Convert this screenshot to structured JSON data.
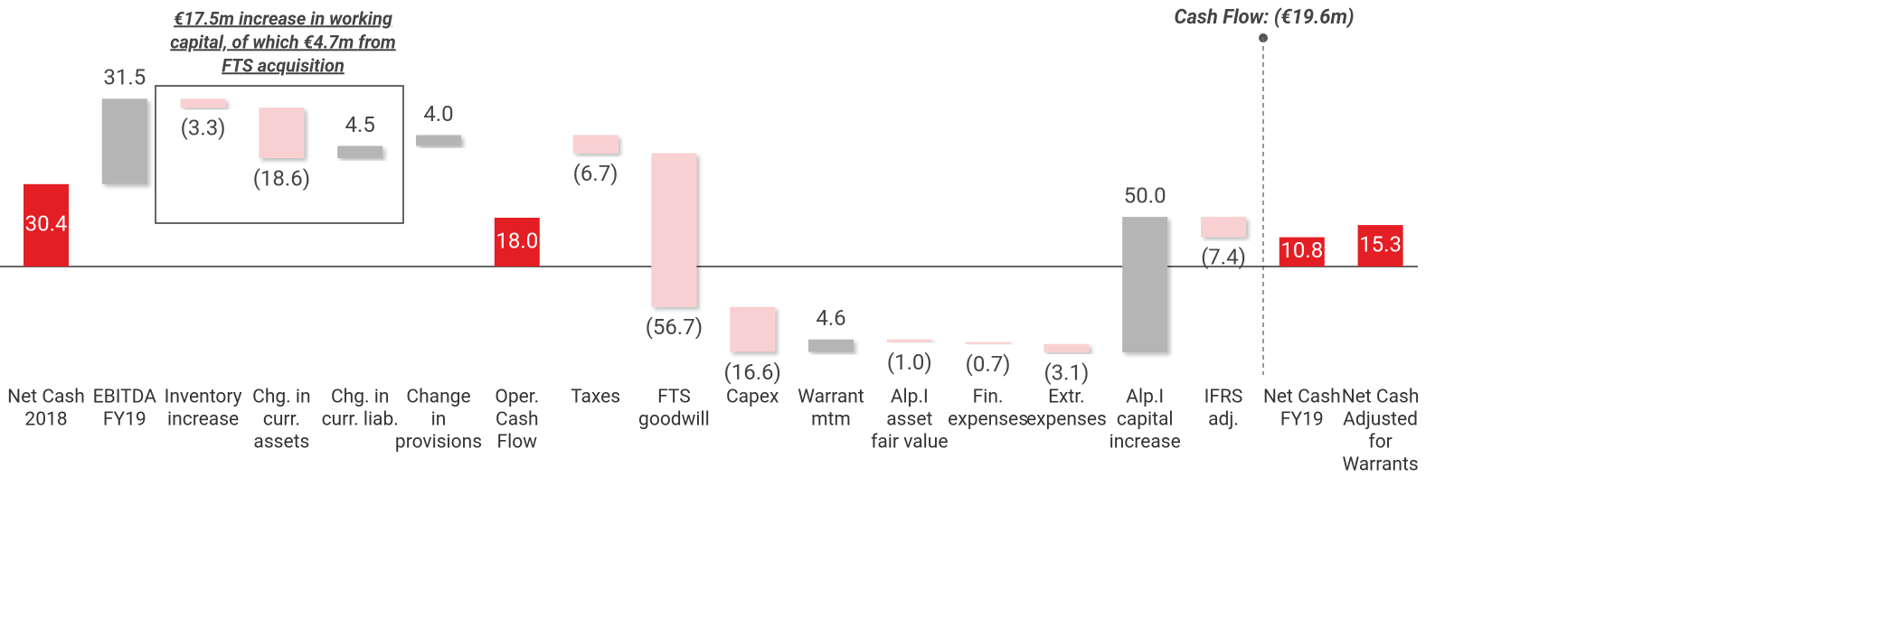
{
  "chart_data": {
    "type": "waterfall",
    "categories": [
      [
        "Net Cash",
        "2018"
      ],
      [
        "EBITDA",
        "FY19"
      ],
      [
        "Inventory",
        "increase"
      ],
      [
        "Chg. in",
        "curr.",
        "assets"
      ],
      [
        "Chg. in",
        "curr. liab."
      ],
      [
        "Change",
        "in",
        "provisions"
      ],
      [
        "Oper.",
        "Cash",
        "Flow"
      ],
      [
        "Taxes"
      ],
      [
        "FTS",
        "goodwill"
      ],
      [
        "Capex"
      ],
      [
        "Warrant",
        "mtm"
      ],
      [
        "Alp.I",
        "asset",
        "fair value"
      ],
      [
        "Fin.",
        "expenses"
      ],
      [
        "Extr.",
        "expenses"
      ],
      [
        "Alp.I",
        "capital",
        "increase"
      ],
      [
        "IFRS",
        "adj."
      ],
      [
        "Net Cash",
        "FY19"
      ],
      [
        "Net Cash",
        "Adjusted",
        "for",
        "Warrants"
      ]
    ],
    "values": [
      30.4,
      31.5,
      -3.3,
      -18.6,
      4.5,
      4.0,
      18.0,
      -6.7,
      -56.7,
      -16.6,
      4.6,
      -1.0,
      -0.7,
      -3.1,
      50.0,
      -7.4,
      10.8,
      15.3
    ],
    "value_labels": [
      "30.4",
      "31.5",
      "(3.3)",
      "(18.6)",
      "4.5",
      "4.0",
      "18.0",
      "(6.7)",
      "(56.7)",
      "(16.6)",
      "4.6",
      "(1.0)",
      "(0.7)",
      "(3.1)",
      "50.0",
      "(7.4)",
      "10.8",
      "15.3"
    ],
    "kinds": [
      "total",
      "delta",
      "delta",
      "delta",
      "delta",
      "delta",
      "total",
      "delta",
      "delta",
      "delta",
      "delta",
      "delta",
      "delta",
      "delta",
      "delta",
      "delta",
      "total",
      "total"
    ],
    "colors": {
      "total": "#e31e24",
      "increase": "#b5b5b5",
      "decrease": "#f9d0d1"
    },
    "ylim": [
      -40,
      70
    ],
    "annotations": [
      {
        "text": [
          "€17.5m increase in working",
          "capital, of which €4.7m from",
          "FTS acquisition"
        ]
      },
      {
        "text": "Cash Flow: (€19.6m)"
      }
    ]
  }
}
